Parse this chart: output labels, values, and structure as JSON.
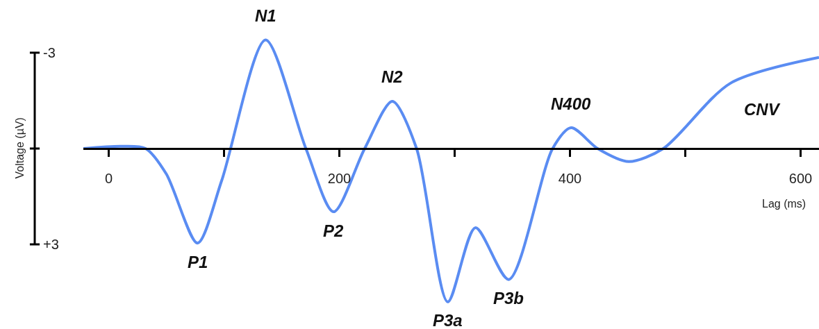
{
  "chart_data": {
    "type": "line",
    "xlabel": "Lag (ms)",
    "ylabel": "Voltage (µV)",
    "x": [
      -22,
      11,
      32,
      50,
      77,
      98,
      136,
      171,
      195,
      222,
      246,
      267,
      294,
      318,
      347,
      385,
      401,
      424,
      451,
      481,
      539,
      616
    ],
    "series": [
      {
        "color": "#5a8cf2",
        "values": [
          0,
          -0.07,
          0,
          0.8,
          2.96,
          1.0,
          -3.4,
          0,
          1.98,
          0,
          -1.48,
          0,
          4.8,
          2.48,
          4.1,
          0,
          -0.65,
          0,
          0.41,
          0,
          -2.04,
          -2.85
        ]
      }
    ],
    "xlim": [
      -22,
      616
    ],
    "ylim": [
      5.65,
      -4.65
    ],
    "xticks": [
      0,
      {
        "value": 100,
        "label": null
      },
      200,
      {
        "value": 300,
        "label": null
      },
      400,
      {
        "value": 500,
        "label": null
      },
      600
    ],
    "yticks": [
      {
        "value": -3,
        "label": "-3"
      },
      {
        "value": 0,
        "label": null
      },
      {
        "value": 3,
        "label": "+3"
      }
    ],
    "annotations": [
      {
        "text": "N1",
        "x": 136,
        "y": -3.4
      },
      {
        "text": "N2",
        "x": 246,
        "y": -1.48
      },
      {
        "text": "N400",
        "x": 401,
        "y": -0.65
      },
      "CNV",
      {
        "text": "P1",
        "x": 77,
        "y": 2.96
      },
      {
        "text": "P2",
        "x": 195,
        "y": 1.98
      },
      {
        "text": "P3a",
        "x": 294,
        "y": 4.8
      },
      {
        "text": "P3b",
        "x": 347,
        "y": 4.1
      }
    ],
    "marker": "none",
    "line_style": "solid"
  }
}
